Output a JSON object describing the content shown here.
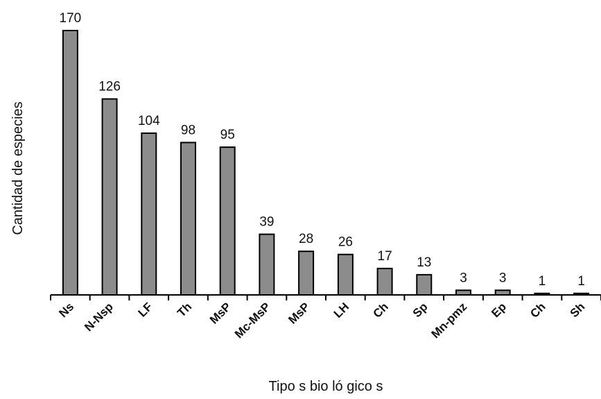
{
  "chart_data": {
    "type": "bar",
    "title": "",
    "xlabel": "Tipo s bio ló gico s",
    "ylabel": "Cantidad de especies",
    "categories": [
      "Ns",
      "N-Nsp",
      "LF",
      "Th",
      "MsP",
      "Mc-MsP",
      "MsP",
      "LH",
      "Ch",
      "Sp",
      "Mn-pmz",
      "Ep",
      "Ch",
      "Sh"
    ],
    "values": [
      170,
      126,
      104,
      98,
      95,
      39,
      28,
      26,
      17,
      13,
      3,
      3,
      1,
      1
    ],
    "ylim": [
      0,
      180
    ],
    "grid": false,
    "legend": "none",
    "bar_color": "#8c8c8c"
  }
}
